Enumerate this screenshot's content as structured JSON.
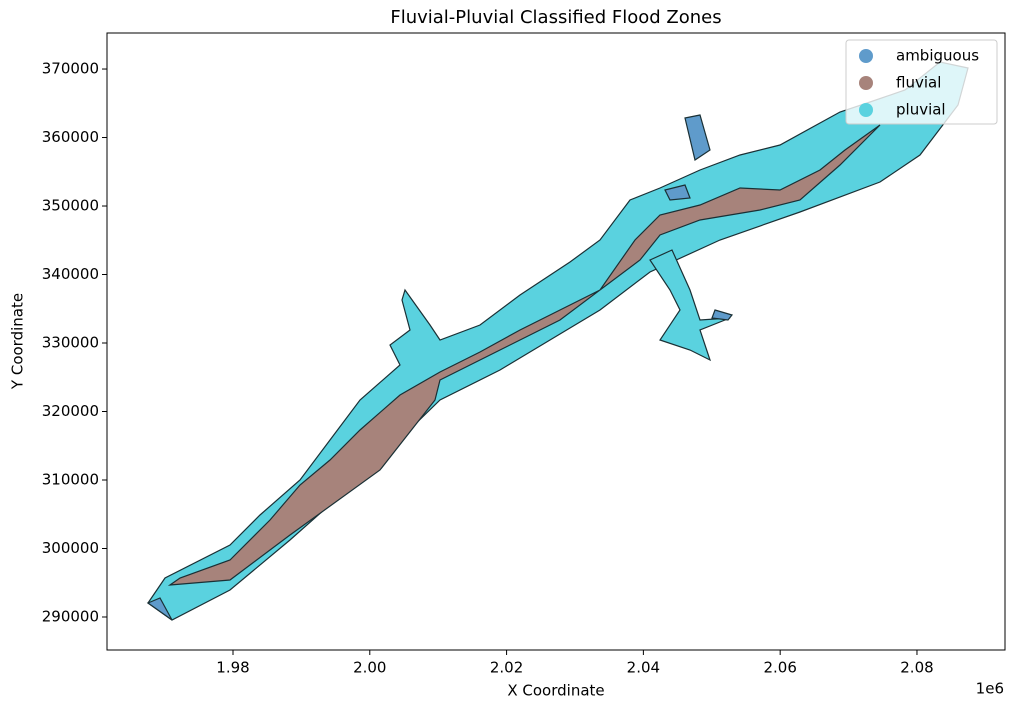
{
  "chart_data": {
    "type": "map",
    "title": "Fluvial-Pluvial Classified Flood Zones",
    "x_label": "X Coordinate",
    "y_label": "Y Coordinate",
    "x_offset_label": "1e6",
    "xlim": [
      1961580,
      2092870
    ],
    "ylim": [
      285180,
      375260
    ],
    "xticks": [
      {
        "value": 1980000,
        "label": "1.98"
      },
      {
        "value": 2000000,
        "label": "2.00"
      },
      {
        "value": 2020000,
        "label": "2.02"
      },
      {
        "value": 2040000,
        "label": "2.04"
      },
      {
        "value": 2060000,
        "label": "2.06"
      },
      {
        "value": 2080000,
        "label": "2.08"
      }
    ],
    "yticks": [
      290000,
      300000,
      310000,
      320000,
      330000,
      340000,
      350000,
      360000,
      370000
    ],
    "legend": "upper right",
    "series": [
      {
        "name": "ambiguous",
        "color": "#5f9bcb"
      },
      {
        "name": "fluvial",
        "color": "#a7837b"
      },
      {
        "name": "pluvial",
        "color": "#5ad2df"
      }
    ]
  }
}
